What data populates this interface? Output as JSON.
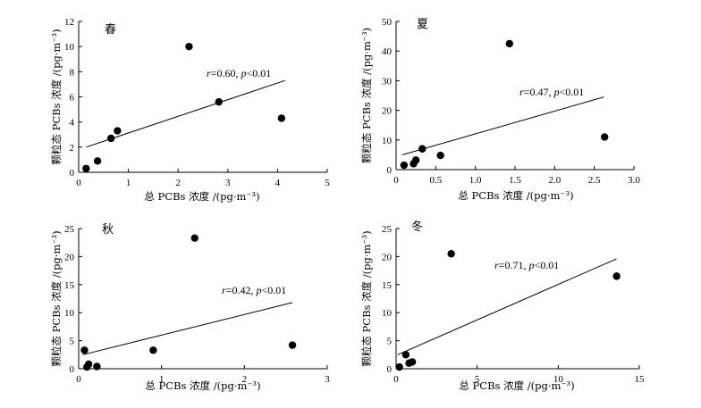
{
  "chart_data": [
    {
      "type": "scatter",
      "season_label": "春",
      "xlabel": "总 PCBs 浓度 /(pg·m⁻³)",
      "ylabel": "颗粒态 PCBs 浓度 /(pg·m⁻³)",
      "xlim": [
        0,
        5
      ],
      "ylim": [
        0,
        12
      ],
      "xticks": [
        "0",
        "1",
        "2",
        "3",
        "4",
        "5"
      ],
      "yticks": [
        "0",
        "2",
        "4",
        "6",
        "8",
        "10",
        "12"
      ],
      "x": [
        0.15,
        0.38,
        0.65,
        0.78,
        2.22,
        2.82,
        4.08
      ],
      "y": [
        0.3,
        0.9,
        2.7,
        3.3,
        10.0,
        5.6,
        4.3
      ],
      "fit_line": {
        "x": [
          0.15,
          4.15
        ],
        "y": [
          2.0,
          7.3
        ]
      },
      "annotation": {
        "r_label": "r",
        "r_value": "=0.60, ",
        "p_label": "p",
        "p_value": "<0.01"
      },
      "grid": false
    },
    {
      "type": "scatter",
      "season_label": "夏",
      "xlabel": "总 PCBs 浓度 /(pg·m⁻³)",
      "ylabel": "颗粒态 PCBs 浓度 /(pg·m⁻³)",
      "xlim": [
        0,
        3.0
      ],
      "ylim": [
        0,
        50
      ],
      "xticks": [
        "0",
        "0.5",
        "1.0",
        "1.5",
        "2.0",
        "2.5",
        "3.0"
      ],
      "yticks": [
        "0",
        "10",
        "20",
        "30",
        "40",
        "50"
      ],
      "x": [
        0.1,
        0.22,
        0.25,
        0.33,
        0.56,
        1.43,
        2.63
      ],
      "y": [
        1.5,
        2.0,
        3.2,
        7.0,
        4.8,
        42.5,
        11.0
      ],
      "fit_line": {
        "x": [
          0.08,
          2.62
        ],
        "y": [
          5.0,
          24.5
        ]
      },
      "annotation": {
        "r_label": "r",
        "r_value": "=0.47, ",
        "p_label": "p",
        "p_value": "<0.01"
      },
      "grid": false
    },
    {
      "type": "scatter",
      "season_label": "秋",
      "xlabel": "总 PCBs 浓度 /(pg·m⁻³)",
      "ylabel": "颗粒态 PCBs 浓度 /(pg·m⁻³)",
      "xlim": [
        0,
        3
      ],
      "ylim": [
        0,
        25
      ],
      "xticks": [
        "0",
        "1",
        "2",
        "3"
      ],
      "yticks": [
        "0",
        "5",
        "10",
        "15",
        "20",
        "25"
      ],
      "x": [
        0.07,
        0.1,
        0.12,
        0.22,
        0.9,
        1.4,
        2.58
      ],
      "y": [
        3.3,
        0.3,
        0.8,
        0.4,
        3.3,
        23.3,
        4.2
      ],
      "fit_line": {
        "x": [
          0.05,
          2.58
        ],
        "y": [
          2.5,
          11.8
        ]
      },
      "annotation": {
        "r_label": "r",
        "r_value": "=0.42, ",
        "p_label": "p",
        "p_value": "<0.01"
      },
      "grid": false
    },
    {
      "type": "scatter",
      "season_label": "冬",
      "xlabel": "总 PCBs 浓度 /(pg·m⁻³)",
      "ylabel": "颗粒态 PCBs 浓度 /(pg·m⁻³)",
      "xlim": [
        0,
        15
      ],
      "ylim": [
        0,
        25
      ],
      "xticks": [
        "0",
        "5",
        "10",
        "15"
      ],
      "yticks": [
        "0",
        "5",
        "10",
        "15",
        "20",
        "25"
      ],
      "x": [
        0.2,
        0.6,
        0.8,
        1.0,
        3.4,
        13.6
      ],
      "y": [
        0.3,
        2.5,
        1.0,
        1.2,
        20.5,
        16.5
      ],
      "fit_line": {
        "x": [
          0.1,
          13.6
        ],
        "y": [
          2.5,
          19.6
        ]
      },
      "annotation": {
        "r_label": "r",
        "r_value": "=0.71, ",
        "p_label": "p",
        "p_value": "<0.01"
      },
      "grid": false
    }
  ]
}
